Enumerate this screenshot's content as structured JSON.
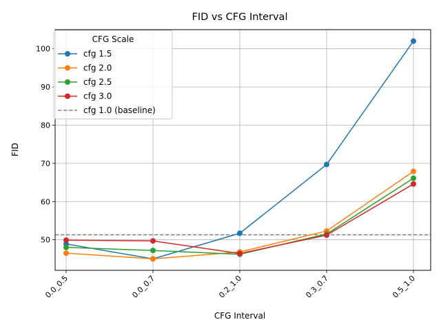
{
  "chart_data": {
    "type": "line",
    "title": "FID vs CFG Interval",
    "xlabel": "CFG Interval",
    "ylabel": "FID",
    "categories": [
      "0.0_0.5",
      "0.0_0.7",
      "0.2_1.0",
      "0.3_0.7",
      "0.5_1.0"
    ],
    "ylim": [
      42.0,
      105.0
    ],
    "yticks": [
      50,
      60,
      70,
      80,
      90,
      100
    ],
    "grid": true,
    "legend": {
      "title": "CFG Scale",
      "placement": "upper-left"
    },
    "series": [
      {
        "name": "cfg 1.5",
        "color": "#1f77b4",
        "values": [
          48.9,
          45.0,
          51.7,
          69.7,
          102.0
        ]
      },
      {
        "name": "cfg 2.0",
        "color": "#ff7f0e",
        "values": [
          46.5,
          45.0,
          46.8,
          52.3,
          67.9
        ]
      },
      {
        "name": "cfg 2.5",
        "color": "#2ca02c",
        "values": [
          48.0,
          47.2,
          46.2,
          51.5,
          66.1
        ]
      },
      {
        "name": "cfg 3.0",
        "color": "#d62728",
        "values": [
          49.9,
          49.7,
          46.4,
          51.2,
          64.6
        ]
      }
    ],
    "baseline": {
      "name": "cfg 1.0 (baseline)",
      "value": 51.3,
      "color": "#808080"
    }
  }
}
